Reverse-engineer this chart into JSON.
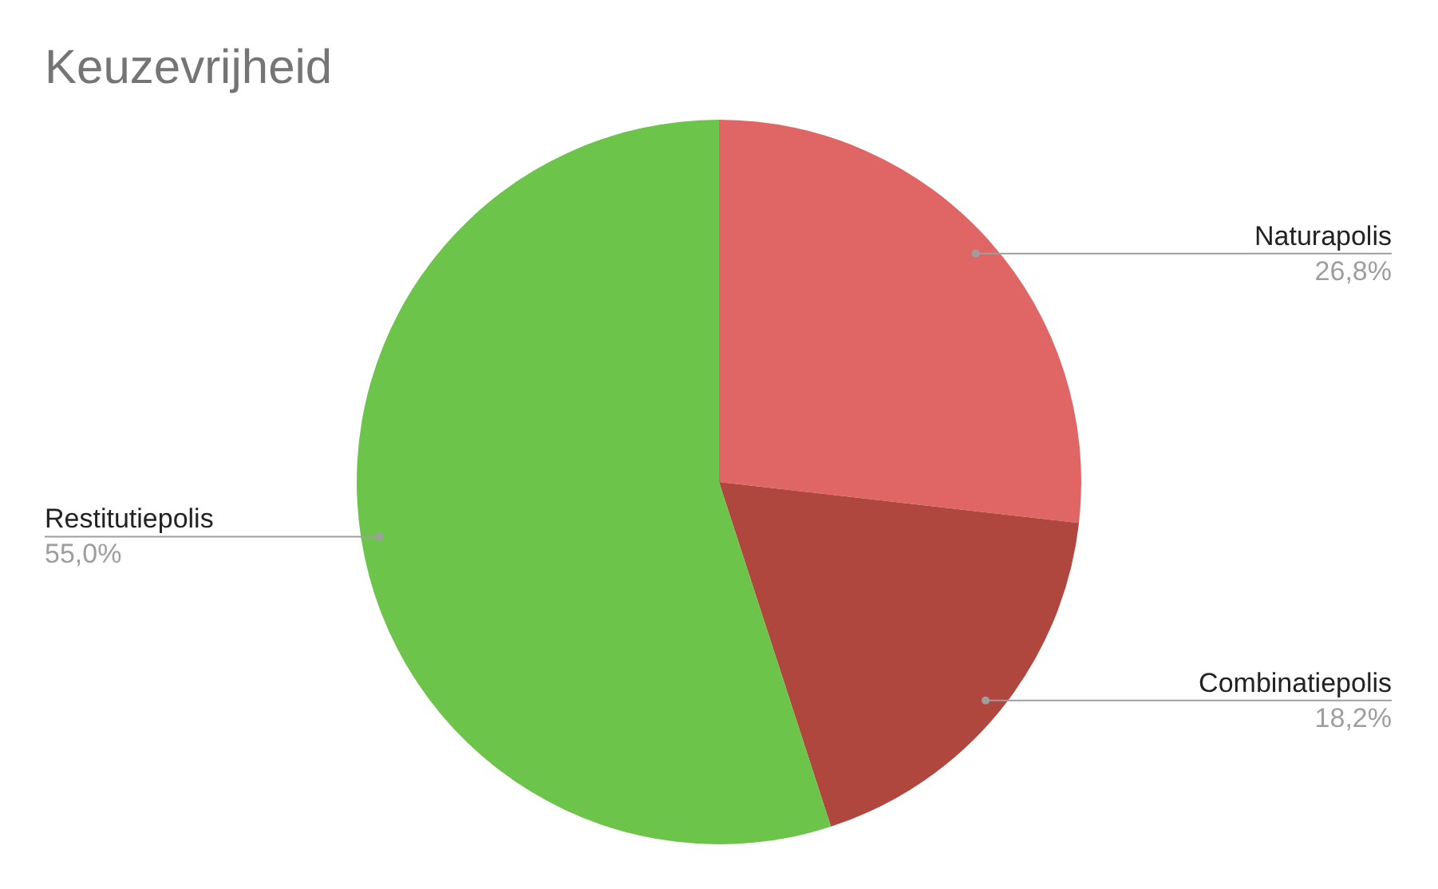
{
  "chart_data": {
    "type": "pie",
    "title": "Keuzevrijheid",
    "categories": [
      "Naturapolis",
      "Combinatiepolis",
      "Restitutiepolis"
    ],
    "values": [
      26.8,
      18.2,
      55.0
    ],
    "colors": [
      "#e06666",
      "#b0473e",
      "#6dc44b"
    ],
    "value_labels": [
      "26,8%",
      "18,2%",
      "55,0%"
    ]
  }
}
